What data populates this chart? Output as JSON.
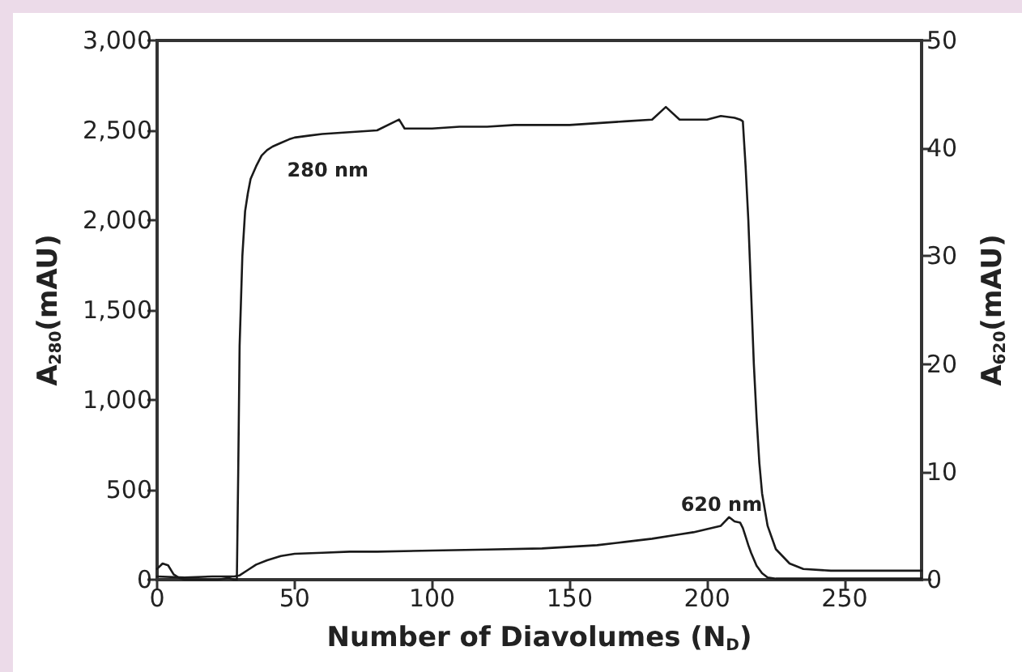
{
  "chart_data": {
    "type": "line",
    "xlabel": "Number of Diavolumes (N$_{D}$)",
    "ylabel": "A$_{280}$(mAU)",
    "y2label": "A$_{620}$(mAU)",
    "xlim": [
      0,
      278
    ],
    "xticks": [
      0,
      50,
      100,
      150,
      200,
      250
    ],
    "ylim": [
      0,
      3000
    ],
    "yticks": [
      0,
      500,
      {
        "value": 1000,
        "label": "1,000"
      },
      {
        "value": 1500,
        "label": "1,500"
      },
      {
        "value": 2000,
        "label": "2,000"
      },
      {
        "value": 2500,
        "label": "2,500"
      },
      {
        "value": 3000,
        "label": "3,000"
      }
    ],
    "y2lim": [
      0,
      50
    ],
    "y2ticks": [
      0,
      10,
      20,
      30,
      40,
      50
    ],
    "grid": false,
    "marker": "none",
    "line_style": "solid",
    "annotations": [
      "280 nm",
      "620 nm"
    ],
    "series": [
      {
        "color": "#1a1a1a",
        "x": [
          0,
          2,
          4,
          6,
          8,
          10,
          14,
          18,
          22,
          26,
          28,
          29,
          29.5,
          30,
          31,
          32,
          33,
          34,
          36,
          38,
          40,
          42,
          45,
          48,
          50,
          55,
          60,
          70,
          80,
          88,
          90,
          100,
          110,
          120,
          130,
          140,
          150,
          160,
          170,
          180,
          185,
          190,
          200,
          205,
          210,
          212,
          213,
          214,
          215,
          216,
          217,
          218,
          219,
          220,
          222,
          225,
          230,
          235,
          245,
          260,
          278
        ],
        "values": [
          60,
          90,
          80,
          30,
          10,
          0,
          0,
          0,
          0,
          10,
          0,
          0,
          600,
          1300,
          1800,
          2050,
          2150,
          2230,
          2300,
          2360,
          2390,
          2410,
          2430,
          2450,
          2460,
          2470,
          2480,
          2490,
          2500,
          2560,
          2510,
          2510,
          2520,
          2520,
          2530,
          2530,
          2530,
          2540,
          2550,
          2560,
          2630,
          2560,
          2560,
          2580,
          2570,
          2560,
          2550,
          2300,
          2000,
          1600,
          1200,
          900,
          650,
          480,
          300,
          170,
          90,
          60,
          50,
          50,
          50
        ]
      },
      {
        "color": "#1a1a1a",
        "axis": "y2",
        "x": [
          0,
          10,
          20,
          28,
          30,
          33,
          36,
          40,
          45,
          50,
          60,
          70,
          80,
          100,
          120,
          140,
          160,
          170,
          180,
          190,
          195,
          200,
          205,
          208,
          210,
          212,
          213,
          214,
          215,
          216,
          218,
          220,
          222,
          225,
          240,
          260,
          278
        ],
        "values": [
          0.3,
          0.2,
          0.3,
          0.3,
          0.4,
          0.9,
          1.4,
          1.8,
          2.2,
          2.4,
          2.5,
          2.6,
          2.6,
          2.7,
          2.8,
          2.9,
          3.2,
          3.5,
          3.8,
          4.2,
          4.4,
          4.7,
          5.0,
          5.8,
          5.4,
          5.3,
          4.8,
          4.0,
          3.2,
          2.5,
          1.3,
          0.6,
          0.2,
          0.1,
          0.1,
          0.1,
          0.1
        ]
      }
    ]
  }
}
